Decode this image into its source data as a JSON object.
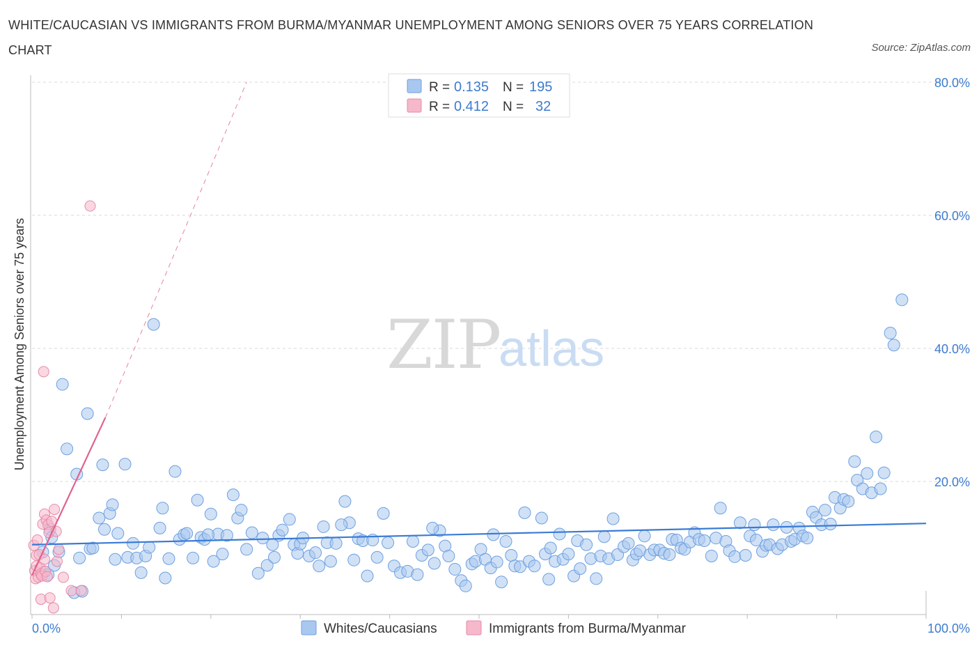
{
  "title": "WHITE/CAUCASIAN VS IMMIGRANTS FROM BURMA/MYANMAR UNEMPLOYMENT AMONG SENIORS OVER 75 YEARS CORRELATION CHART",
  "source": "Source: ZipAtlas.com",
  "watermark": {
    "zip": "ZIP",
    "atlas": "atlas"
  },
  "colors": {
    "blue_fill": "#a9c8ef",
    "blue_stroke": "#6d9fe0",
    "blue_line": "#3a7bd5",
    "pink_fill": "#f6b8cb",
    "pink_stroke": "#e889a8",
    "pink_line": "#e0638f",
    "grid": "#d8d8d8",
    "axis_text": "#3d7bd0"
  },
  "legend_top": {
    "rows": [
      {
        "r_label": "R =",
        "r_value": "0.135",
        "n_label": "N =",
        "n_value": "195"
      },
      {
        "r_label": "R =",
        "r_value": "0.412",
        "n_label": "N =",
        "n_value": "32"
      }
    ]
  },
  "legend_bottom": {
    "items": [
      "Whites/Caucasians",
      "Immigrants from Burma/Myanmar"
    ]
  },
  "chart_data": {
    "type": "scatter",
    "title": "WHITE/CAUCASIAN VS IMMIGRANTS FROM BURMA/MYANMAR UNEMPLOYMENT AMONG SENIORS OVER 75 YEARS CORRELATION CHART",
    "xlabel": "",
    "ylabel": "Unemployment Among Seniors over 75 years",
    "xlim": [
      0,
      100
    ],
    "ylim": [
      0,
      80
    ],
    "x_tick_labels": [
      "0.0%",
      "100.0%"
    ],
    "y_ticks": [
      20,
      40,
      60,
      80
    ],
    "y_tick_labels": [
      "20.0%",
      "40.0%",
      "60.0%",
      "80.0%"
    ],
    "grid": true,
    "series": [
      {
        "name": "Whites/Caucasians",
        "R": 0.135,
        "N": 195,
        "trend": {
          "x": [
            0,
            100
          ],
          "y": [
            10.5,
            13.7
          ]
        },
        "points": [
          [
            1.2,
            9.4
          ],
          [
            1.4,
            6.4
          ],
          [
            2.5,
            7.4
          ],
          [
            3.4,
            34.6
          ],
          [
            3.9,
            24.9
          ],
          [
            4.7,
            3.3
          ],
          [
            5.0,
            21.1
          ],
          [
            5.3,
            8.5
          ],
          [
            6.2,
            30.2
          ],
          [
            6.5,
            9.9
          ],
          [
            7.5,
            14.5
          ],
          [
            7.9,
            22.5
          ],
          [
            8.1,
            12.8
          ],
          [
            8.7,
            15.2
          ],
          [
            9.0,
            16.5
          ],
          [
            9.6,
            12.2
          ],
          [
            10.4,
            22.6
          ],
          [
            10.7,
            8.6
          ],
          [
            11.3,
            10.7
          ],
          [
            11.7,
            8.5
          ],
          [
            12.2,
            6.3
          ],
          [
            12.7,
            8.8
          ],
          [
            13.1,
            10.1
          ],
          [
            13.6,
            43.6
          ],
          [
            14.3,
            13.0
          ],
          [
            14.6,
            16.0
          ],
          [
            14.9,
            5.5
          ],
          [
            15.3,
            8.4
          ],
          [
            16.0,
            21.5
          ],
          [
            16.5,
            11.3
          ],
          [
            17.0,
            12.0
          ],
          [
            17.3,
            12.2
          ],
          [
            18.0,
            8.5
          ],
          [
            18.5,
            17.2
          ],
          [
            18.9,
            11.6
          ],
          [
            19.3,
            11.3
          ],
          [
            20.0,
            15.1
          ],
          [
            20.3,
            8.0
          ],
          [
            20.8,
            12.1
          ],
          [
            21.3,
            9.1
          ],
          [
            21.8,
            11.9
          ],
          [
            22.5,
            18.0
          ],
          [
            23.0,
            14.5
          ],
          [
            23.4,
            15.7
          ],
          [
            24.0,
            9.8
          ],
          [
            24.6,
            12.3
          ],
          [
            25.3,
            6.2
          ],
          [
            25.8,
            11.5
          ],
          [
            26.3,
            7.4
          ],
          [
            27.1,
            8.6
          ],
          [
            27.6,
            11.9
          ],
          [
            28.0,
            12.7
          ],
          [
            28.8,
            14.3
          ],
          [
            29.3,
            10.5
          ],
          [
            29.7,
            9.2
          ],
          [
            30.0,
            10.6
          ],
          [
            30.3,
            11.5
          ],
          [
            31.0,
            8.8
          ],
          [
            31.7,
            9.3
          ],
          [
            32.1,
            7.3
          ],
          [
            32.6,
            13.2
          ],
          [
            33.0,
            10.8
          ],
          [
            33.4,
            8.0
          ],
          [
            34.0,
            10.7
          ],
          [
            35.0,
            17.0
          ],
          [
            35.5,
            13.8
          ],
          [
            36.0,
            8.2
          ],
          [
            36.5,
            11.4
          ],
          [
            37.0,
            11.1
          ],
          [
            37.5,
            5.8
          ],
          [
            38.1,
            11.2
          ],
          [
            38.6,
            8.6
          ],
          [
            39.3,
            15.2
          ],
          [
            39.8,
            10.8
          ],
          [
            40.5,
            7.3
          ],
          [
            41.2,
            6.3
          ],
          [
            42.0,
            6.5
          ],
          [
            42.6,
            11.0
          ],
          [
            43.1,
            6.0
          ],
          [
            43.6,
            8.9
          ],
          [
            44.3,
            9.7
          ],
          [
            45.0,
            7.7
          ],
          [
            45.6,
            12.6
          ],
          [
            46.2,
            10.3
          ],
          [
            46.6,
            8.8
          ],
          [
            47.3,
            6.8
          ],
          [
            48.0,
            5.1
          ],
          [
            48.5,
            4.3
          ],
          [
            49.2,
            7.6
          ],
          [
            49.6,
            8.0
          ],
          [
            50.2,
            9.8
          ],
          [
            50.7,
            8.3
          ],
          [
            51.3,
            7.0
          ],
          [
            52.0,
            7.9
          ],
          [
            52.5,
            4.9
          ],
          [
            53.0,
            11.0
          ],
          [
            53.6,
            8.9
          ],
          [
            54.0,
            7.3
          ],
          [
            54.6,
            7.2
          ],
          [
            55.1,
            15.3
          ],
          [
            55.6,
            8.0
          ],
          [
            56.2,
            7.3
          ],
          [
            57.0,
            14.5
          ],
          [
            57.4,
            9.1
          ],
          [
            57.8,
            5.3
          ],
          [
            58.5,
            8.0
          ],
          [
            59.0,
            12.1
          ],
          [
            59.4,
            8.3
          ],
          [
            60.0,
            9.1
          ],
          [
            60.6,
            5.8
          ],
          [
            61.0,
            11.1
          ],
          [
            61.3,
            6.9
          ],
          [
            62.0,
            10.5
          ],
          [
            62.5,
            8.4
          ],
          [
            63.1,
            5.4
          ],
          [
            63.6,
            8.8
          ],
          [
            64.0,
            11.7
          ],
          [
            64.5,
            8.4
          ],
          [
            65.0,
            14.4
          ],
          [
            65.5,
            9.0
          ],
          [
            66.2,
            10.2
          ],
          [
            66.7,
            10.7
          ],
          [
            67.2,
            8.2
          ],
          [
            67.6,
            9.1
          ],
          [
            68.0,
            9.6
          ],
          [
            68.5,
            11.8
          ],
          [
            69.1,
            9.0
          ],
          [
            69.6,
            9.7
          ],
          [
            70.2,
            9.7
          ],
          [
            70.7,
            9.2
          ],
          [
            71.3,
            9.0
          ],
          [
            71.6,
            11.3
          ],
          [
            72.1,
            11.2
          ],
          [
            72.6,
            10.0
          ],
          [
            73.0,
            9.8
          ],
          [
            73.6,
            10.9
          ],
          [
            74.1,
            12.3
          ],
          [
            74.6,
            11.3
          ],
          [
            75.2,
            11.1
          ],
          [
            76.0,
            8.8
          ],
          [
            76.5,
            11.5
          ],
          [
            77.0,
            16.0
          ],
          [
            77.6,
            11.0
          ],
          [
            78.0,
            9.6
          ],
          [
            78.6,
            8.7
          ],
          [
            79.2,
            13.8
          ],
          [
            79.8,
            8.9
          ],
          [
            80.3,
            11.8
          ],
          [
            80.8,
            13.5
          ],
          [
            81.0,
            11.2
          ],
          [
            81.7,
            9.5
          ],
          [
            82.1,
            10.4
          ],
          [
            82.5,
            10.5
          ],
          [
            82.9,
            13.5
          ],
          [
            83.4,
            9.9
          ],
          [
            83.9,
            10.5
          ],
          [
            84.4,
            13.1
          ],
          [
            84.9,
            11.0
          ],
          [
            85.3,
            11.3
          ],
          [
            85.8,
            13.0
          ],
          [
            86.2,
            11.8
          ],
          [
            86.7,
            11.5
          ],
          [
            87.3,
            15.4
          ],
          [
            87.7,
            14.6
          ],
          [
            88.3,
            13.5
          ],
          [
            88.7,
            15.7
          ],
          [
            89.3,
            13.6
          ],
          [
            89.8,
            17.6
          ],
          [
            90.4,
            16.0
          ],
          [
            90.8,
            17.3
          ],
          [
            91.3,
            17.0
          ],
          [
            92.0,
            23.0
          ],
          [
            92.3,
            20.2
          ],
          [
            92.9,
            18.9
          ],
          [
            93.4,
            21.2
          ],
          [
            93.9,
            18.3
          ],
          [
            94.4,
            26.7
          ],
          [
            94.9,
            18.9
          ],
          [
            95.3,
            21.3
          ],
          [
            96.0,
            42.3
          ],
          [
            96.4,
            40.5
          ],
          [
            97.3,
            47.3
          ],
          [
            2.0,
            12.8
          ],
          [
            2.2,
            11.6
          ],
          [
            3.0,
            9.4
          ],
          [
            1.8,
            6.0
          ],
          [
            5.6,
            3.5
          ],
          [
            6.8,
            10.0
          ],
          [
            9.3,
            8.3
          ],
          [
            19.7,
            12.0
          ],
          [
            26.9,
            10.5
          ],
          [
            34.6,
            13.5
          ],
          [
            44.8,
            13.0
          ],
          [
            51.6,
            12.0
          ],
          [
            58.0,
            10.0
          ]
        ]
      },
      {
        "name": "Immigrants from Burma/Myanmar",
        "R": 0.412,
        "N": 32,
        "trend": {
          "x": [
            0,
            8.2
          ],
          "y": [
            5.9,
            29.6
          ],
          "dashed_extension": {
            "x": [
              8.2,
              24.0
            ],
            "y": [
              29.6,
              80
            ]
          }
        },
        "points": [
          [
            0.2,
            10.4
          ],
          [
            0.3,
            6.6
          ],
          [
            0.4,
            5.4
          ],
          [
            0.5,
            7.3
          ],
          [
            0.5,
            8.9
          ],
          [
            0.6,
            11.2
          ],
          [
            0.7,
            5.6
          ],
          [
            0.8,
            9.0
          ],
          [
            0.9,
            7.0
          ],
          [
            1.0,
            6.1
          ],
          [
            1.0,
            2.3
          ],
          [
            1.1,
            5.8
          ],
          [
            1.2,
            13.6
          ],
          [
            1.3,
            36.5
          ],
          [
            1.4,
            15.1
          ],
          [
            1.4,
            8.3
          ],
          [
            1.5,
            6.5
          ],
          [
            1.6,
            14.2
          ],
          [
            1.7,
            5.7
          ],
          [
            1.8,
            13.5
          ],
          [
            1.9,
            12.3
          ],
          [
            2.0,
            2.5
          ],
          [
            2.2,
            14.0
          ],
          [
            2.4,
            1.0
          ],
          [
            2.5,
            15.8
          ],
          [
            2.7,
            12.5
          ],
          [
            2.8,
            8.0
          ],
          [
            3.0,
            9.8
          ],
          [
            3.5,
            5.6
          ],
          [
            4.4,
            3.6
          ],
          [
            5.5,
            3.6
          ],
          [
            6.5,
            61.4
          ]
        ]
      }
    ]
  }
}
